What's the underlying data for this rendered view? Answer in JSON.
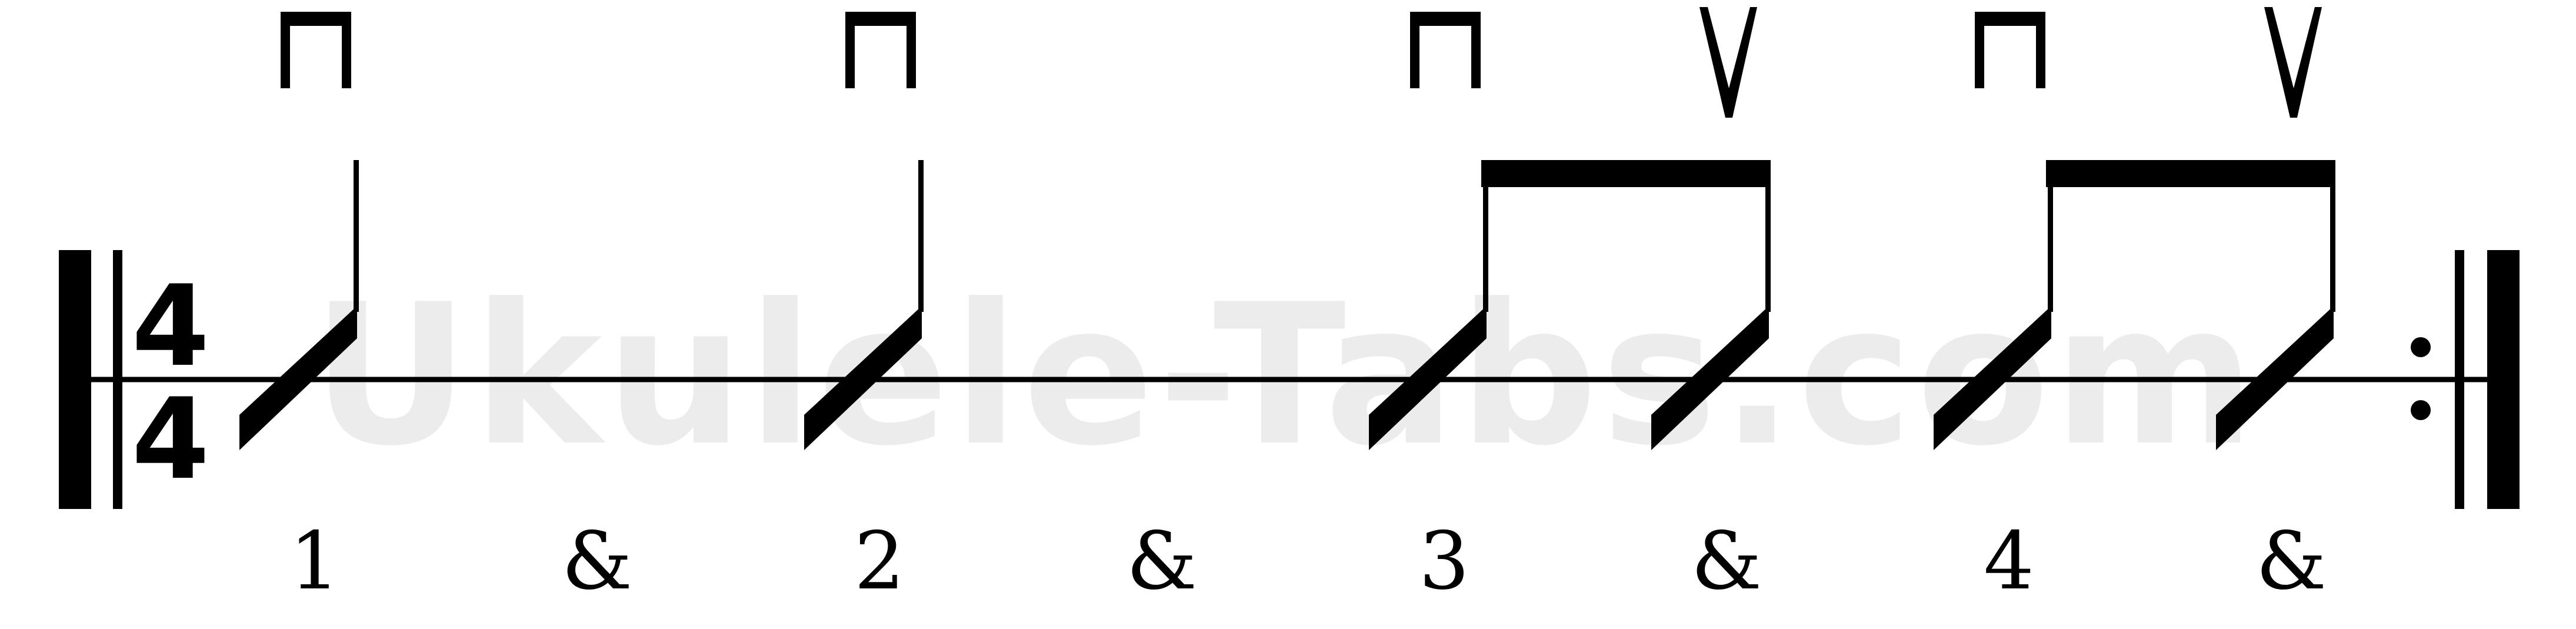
{
  "watermark": {
    "text": "Ukulele-Tabs.com",
    "color": "#ececec"
  },
  "time_signature": {
    "numerator": "4",
    "denominator": "4"
  },
  "colors": {
    "ink": "#000000",
    "background": "#ffffff"
  },
  "beats": [
    {
      "count": "1",
      "stroke": "down",
      "bow": "down-bow-icon"
    },
    {
      "count": "&",
      "stroke": "rest",
      "bow": ""
    },
    {
      "count": "2",
      "stroke": "down",
      "bow": "down-bow-icon"
    },
    {
      "count": "&",
      "stroke": "rest",
      "bow": ""
    },
    {
      "count": "3",
      "stroke": "down",
      "bow": "down-bow-icon"
    },
    {
      "count": "&",
      "stroke": "up",
      "bow": "up-bow-icon"
    },
    {
      "count": "4",
      "stroke": "down",
      "bow": "down-bow-icon"
    },
    {
      "count": "&",
      "stroke": "up",
      "bow": "up-bow-icon"
    }
  ],
  "repeat_end": true
}
